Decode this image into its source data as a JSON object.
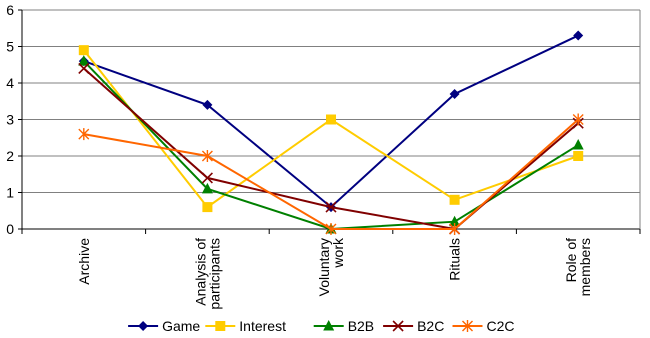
{
  "chart_data": {
    "type": "line",
    "categories": [
      "Archive",
      "Analysis of participants",
      "Voluntary work",
      "Rituals",
      "Role of members"
    ],
    "category_lines": [
      [
        "Archive"
      ],
      [
        "Analysis of",
        "participants"
      ],
      [
        "Voluntary",
        "work"
      ],
      [
        "Rituals"
      ],
      [
        "Role of",
        "members"
      ]
    ],
    "y_ticks": [
      "0",
      "1",
      "2",
      "3",
      "4",
      "5",
      "6"
    ],
    "ylim": [
      0,
      6
    ],
    "grid": true,
    "legend_position": "bottom",
    "series": [
      {
        "name": "Game",
        "values": [
          4.6,
          3.4,
          0.6,
          3.7,
          5.3
        ],
        "color": "#000080",
        "marker": "diamond"
      },
      {
        "name": "Interest",
        "values": [
          4.9,
          0.6,
          3.0,
          0.8,
          2.0
        ],
        "color": "#FFCC00",
        "marker": "square"
      },
      {
        "name": "B2B",
        "values": [
          4.6,
          1.1,
          0.0,
          0.2,
          2.3
        ],
        "color": "#008000",
        "marker": "triangle"
      },
      {
        "name": "B2C",
        "values": [
          4.4,
          1.4,
          0.6,
          0.0,
          2.9
        ],
        "color": "#800000",
        "marker": "x"
      },
      {
        "name": "C2C",
        "values": [
          2.6,
          2.0,
          0.0,
          0.0,
          3.0
        ],
        "color": "#FF6600",
        "marker": "star"
      }
    ]
  }
}
